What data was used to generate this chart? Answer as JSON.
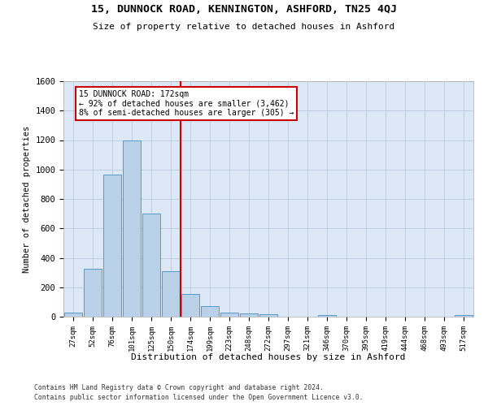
{
  "title": "15, DUNNOCK ROAD, KENNINGTON, ASHFORD, TN25 4QJ",
  "subtitle": "Size of property relative to detached houses in Ashford",
  "xlabel": "Distribution of detached houses by size in Ashford",
  "ylabel": "Number of detached properties",
  "bar_labels": [
    "27sqm",
    "52sqm",
    "76sqm",
    "101sqm",
    "125sqm",
    "150sqm",
    "174sqm",
    "199sqm",
    "223sqm",
    "248sqm",
    "272sqm",
    "297sqm",
    "321sqm",
    "346sqm",
    "370sqm",
    "395sqm",
    "419sqm",
    "444sqm",
    "468sqm",
    "493sqm",
    "517sqm"
  ],
  "bar_values": [
    30,
    325,
    965,
    1195,
    700,
    310,
    155,
    70,
    30,
    20,
    15,
    0,
    0,
    10,
    0,
    0,
    0,
    0,
    0,
    0,
    10
  ],
  "bar_color": "#b8d0e8",
  "bar_edge_color": "#5599cc",
  "vline_index": 6,
  "annotation_line1": "15 DUNNOCK ROAD: 172sqm",
  "annotation_line2": "← 92% of detached houses are smaller (3,462)",
  "annotation_line3": "8% of semi-detached houses are larger (305) →",
  "vline_color": "#cc0000",
  "annotation_box_color": "#cc0000",
  "ylim": [
    0,
    1600
  ],
  "yticks": [
    0,
    200,
    400,
    600,
    800,
    1000,
    1200,
    1400,
    1600
  ],
  "background_color": "#ffffff",
  "plot_bg_color": "#dce8f5",
  "grid_color": "#b0c4d8",
  "footer_line1": "Contains HM Land Registry data © Crown copyright and database right 2024.",
  "footer_line2": "Contains public sector information licensed under the Open Government Licence v3.0."
}
